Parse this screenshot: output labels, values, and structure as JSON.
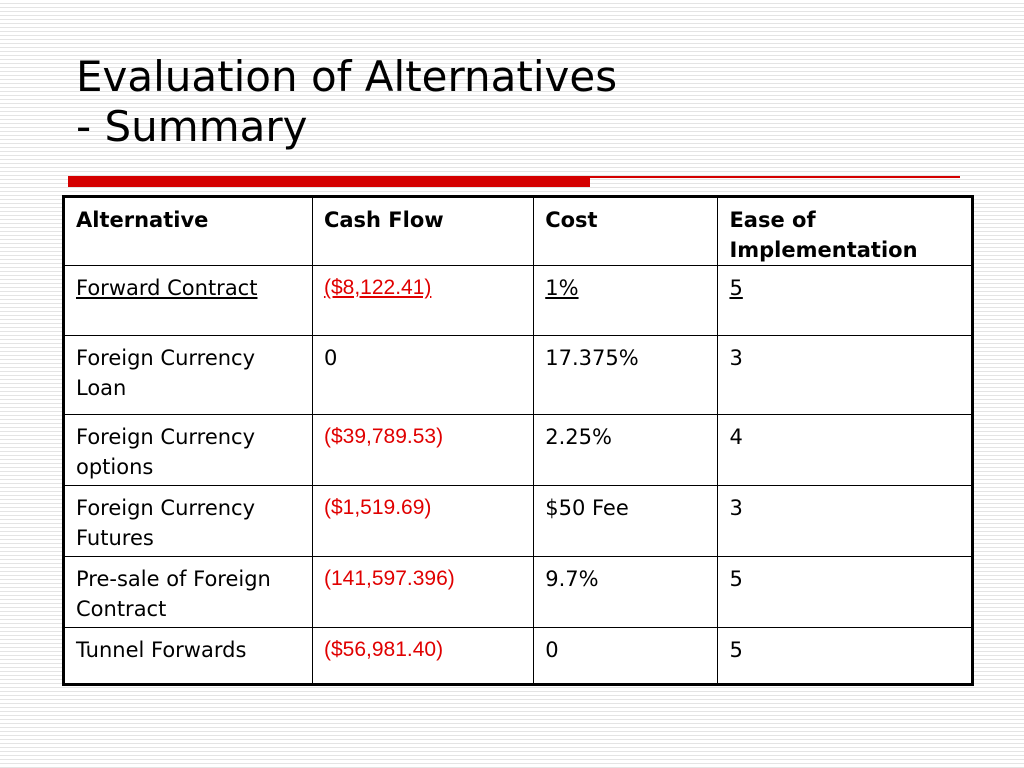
{
  "slide": {
    "title_line1": "Evaluation of Alternatives",
    "title_line2": "- Summary",
    "accent_color": "#d40000"
  },
  "table": {
    "headers": [
      "Alternative",
      "Cash Flow",
      "Cost",
      "Ease of Implementation"
    ],
    "rows": [
      {
        "alternative": "Forward Contract",
        "cash_flow": "($8,122.41)",
        "cost": "1%",
        "ease": "5"
      },
      {
        "alternative": "Foreign Currency Loan",
        "cash_flow": "0",
        "cost": "17.375%",
        "ease": "3"
      },
      {
        "alternative": "Foreign Currency options",
        "cash_flow": "($39,789.53)",
        "cost": "2.25%",
        "ease": "4"
      },
      {
        "alternative": "Foreign Currency Futures",
        "cash_flow": "($1,519.69)",
        "cost": "$50 Fee",
        "ease": "3"
      },
      {
        "alternative": "Pre-sale of Foreign Contract",
        "cash_flow": "(141,597.396)",
        "cost": "9.7%",
        "ease": "5"
      },
      {
        "alternative": "Tunnel Forwards",
        "cash_flow": "($56,981.40)",
        "cost": "0",
        "ease": "5"
      }
    ],
    "negative_value_color": "#e00000"
  }
}
